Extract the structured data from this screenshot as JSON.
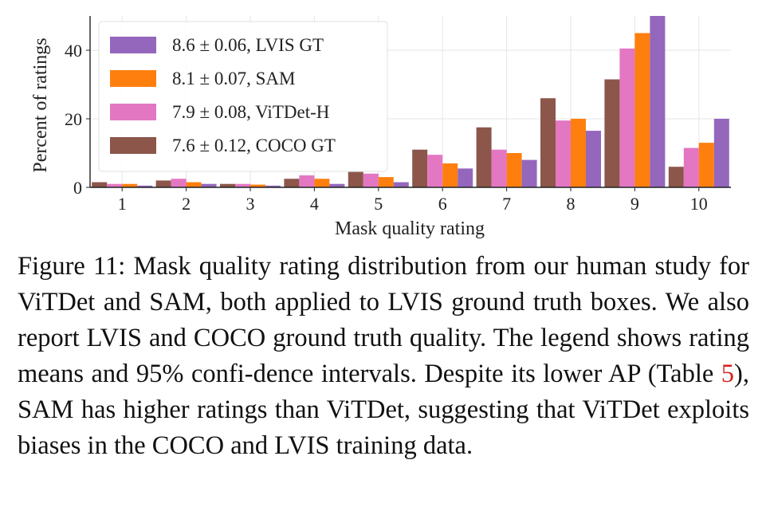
{
  "chart_data": {
    "type": "bar",
    "title": "",
    "xlabel": "Mask quality rating",
    "ylabel": "Percent of ratings",
    "categories": [
      "1",
      "2",
      "3",
      "4",
      "5",
      "6",
      "7",
      "8",
      "9",
      "10"
    ],
    "ylim": [
      0,
      50
    ],
    "yticks": [
      0,
      20,
      40
    ],
    "grid": true,
    "legend_position": "top-left",
    "series": [
      {
        "name": "COCO GT",
        "legend": "7.6 ± 0.12, COCO GT",
        "color": "#8c564b",
        "values": [
          1.5,
          2.0,
          1.0,
          2.5,
          4.5,
          11.0,
          17.5,
          26.0,
          31.5,
          6.0
        ]
      },
      {
        "name": "ViTDet-H",
        "legend": "7.9 ± 0.08, ViTDet-H",
        "color": "#e377c2",
        "values": [
          1.0,
          2.5,
          1.0,
          3.5,
          4.0,
          9.5,
          11.0,
          19.5,
          40.5,
          11.5
        ]
      },
      {
        "name": "SAM",
        "legend": "8.1 ± 0.07, SAM",
        "color": "#ff7f0e",
        "values": [
          1.0,
          1.5,
          0.8,
          2.5,
          3.0,
          7.0,
          10.0,
          20.0,
          45.0,
          13.0
        ]
      },
      {
        "name": "LVIS GT",
        "legend": "8.6 ± 0.06, LVIS GT",
        "color": "#9467bd",
        "values": [
          0.5,
          1.0,
          0.5,
          1.0,
          1.5,
          5.5,
          8.0,
          16.5,
          50.0,
          20.0
        ]
      }
    ],
    "legend_order": [
      "LVIS GT",
      "SAM",
      "ViTDet-H",
      "COCO GT"
    ]
  },
  "caption": {
    "prefix": "Figure 11: Mask quality rating distribution from our human study for ViTDet and SAM, both applied to LVIS ground truth boxes.  We also report LVIS and COCO ground truth quality.  The legend shows rating means and 95% confi-dence intervals.  Despite its lower AP (Table ",
    "ref": "5",
    "suffix": "), SAM has higher ratings than ViTDet, suggesting that ViTDet exploits biases in the COCO and LVIS training data."
  }
}
